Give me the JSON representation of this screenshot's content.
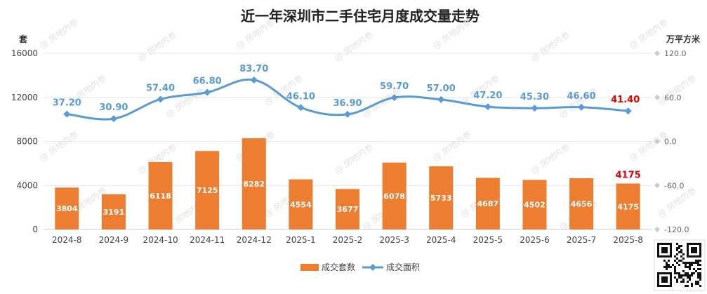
{
  "chart_data": {
    "type": "bar",
    "title": "近一年深圳市二手住宅月度成交量走势",
    "left_axis_unit": "套",
    "right_axis_unit": "万平方米",
    "categories": [
      "2024-8",
      "2024-9",
      "2024-10",
      "2024-11",
      "2024-12",
      "2025-1",
      "2025-2",
      "2025-3",
      "2025-4",
      "2025-5",
      "2025-6",
      "2025-7",
      "2025-8"
    ],
    "y_left": {
      "min": 0,
      "max": 16000,
      "ticks": [
        "0",
        "4000",
        "8000",
        "12000",
        "16000"
      ]
    },
    "y_right": {
      "min": -120,
      "max": 120,
      "ticks": [
        "-120.0",
        "-60.0",
        "0.0",
        "60.0",
        "120.0"
      ]
    },
    "series": [
      {
        "name": "成交套数",
        "type": "bar",
        "axis": "left",
        "color": "#ED7D31",
        "values": [
          3804,
          3191,
          6118,
          7125,
          8282,
          4554,
          3677,
          6078,
          5733,
          4687,
          4502,
          4656,
          4175
        ],
        "labels": [
          "3804",
          "3191",
          "6118",
          "7125",
          "8282",
          "4554",
          "3677",
          "6078",
          "5733",
          "4687",
          "4502",
          "4656",
          "4175"
        ]
      },
      {
        "name": "成交面积",
        "type": "line",
        "axis": "right",
        "color": "#5B9BD5",
        "values": [
          37.2,
          30.9,
          57.4,
          66.8,
          83.7,
          46.1,
          36.9,
          59.7,
          57.0,
          47.2,
          45.3,
          46.6,
          41.4
        ],
        "labels": [
          "37.20",
          "30.90",
          "57.40",
          "66.80",
          "83.70",
          "46.10",
          "36.90",
          "59.70",
          "57.00",
          "47.20",
          "45.30",
          "46.60",
          "41.40"
        ]
      }
    ],
    "highlight_color": "#E00000",
    "highlight_index": 12,
    "grid": true,
    "legend_position": "bottom"
  },
  "watermark_text": "@ 房地内参"
}
